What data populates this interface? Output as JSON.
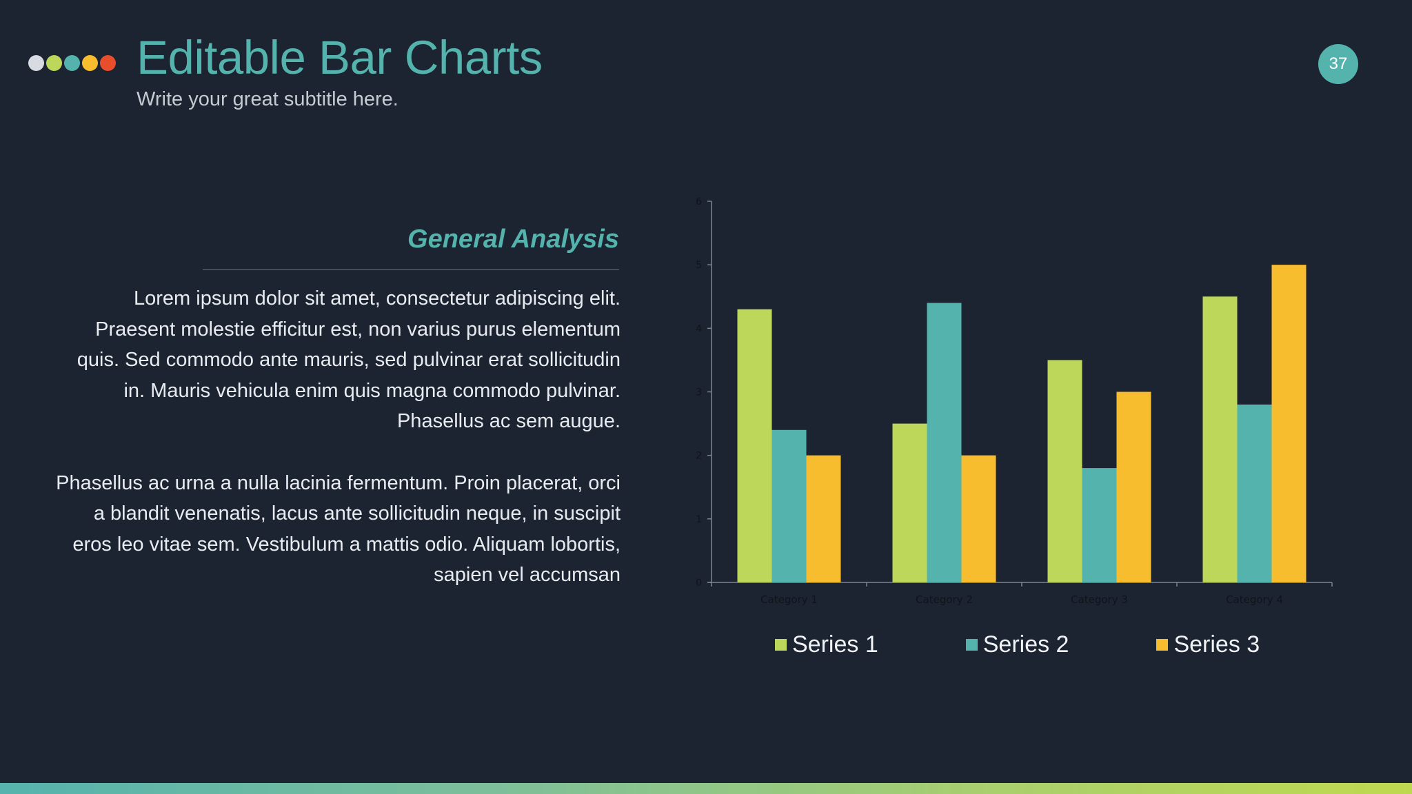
{
  "header": {
    "title": "Editable Bar Charts",
    "subtitle": "Write your great subtitle here.",
    "page_number": "37",
    "dots": [
      "#d8dce2",
      "#bcd759",
      "#55b3ad",
      "#f8bd2e",
      "#e84d2c"
    ]
  },
  "content": {
    "heading": "General Analysis",
    "paragraphs": [
      "Lorem ipsum dolor sit amet, consectetur adipiscing elit. Praesent molestie efficitur est, non varius purus elementum quis. Sed commodo ante mauris, sed pulvinar erat sollicitudin in. Mauris vehicula enim quis magna commodo pulvinar. Phasellus ac sem augue.",
      "Phasellus ac urna a nulla lacinia fermentum. Proin placerat, orci a blandit venenatis, lacus ante sollicitudin neque, in suscipit eros leo vitae sem. Vestibulum a mattis odio. Aliquam lobortis, sapien vel accumsan"
    ]
  },
  "colors": {
    "background": "#1c2431",
    "accent": "#55b3ad",
    "series1": "#bcd759",
    "series2": "#55b3ad",
    "series3": "#f8bd2e"
  },
  "chart_data": {
    "type": "bar",
    "title": "",
    "xlabel": "",
    "ylabel": "",
    "categories": [
      "Category 1",
      "Category 2",
      "Category 3",
      "Category 4"
    ],
    "series": [
      {
        "name": "Series 1",
        "color": "#bcd759",
        "values": [
          4.3,
          2.5,
          3.5,
          4.5
        ]
      },
      {
        "name": "Series 2",
        "color": "#55b3ad",
        "values": [
          2.4,
          4.4,
          1.8,
          2.8
        ]
      },
      {
        "name": "Series 3",
        "color": "#f8bd2e",
        "values": [
          2,
          2,
          3,
          5
        ]
      }
    ],
    "ylim": [
      0,
      6
    ],
    "yticks": [
      0,
      1,
      2,
      3,
      4,
      5,
      6
    ],
    "grid": false,
    "legend_position": "bottom"
  }
}
